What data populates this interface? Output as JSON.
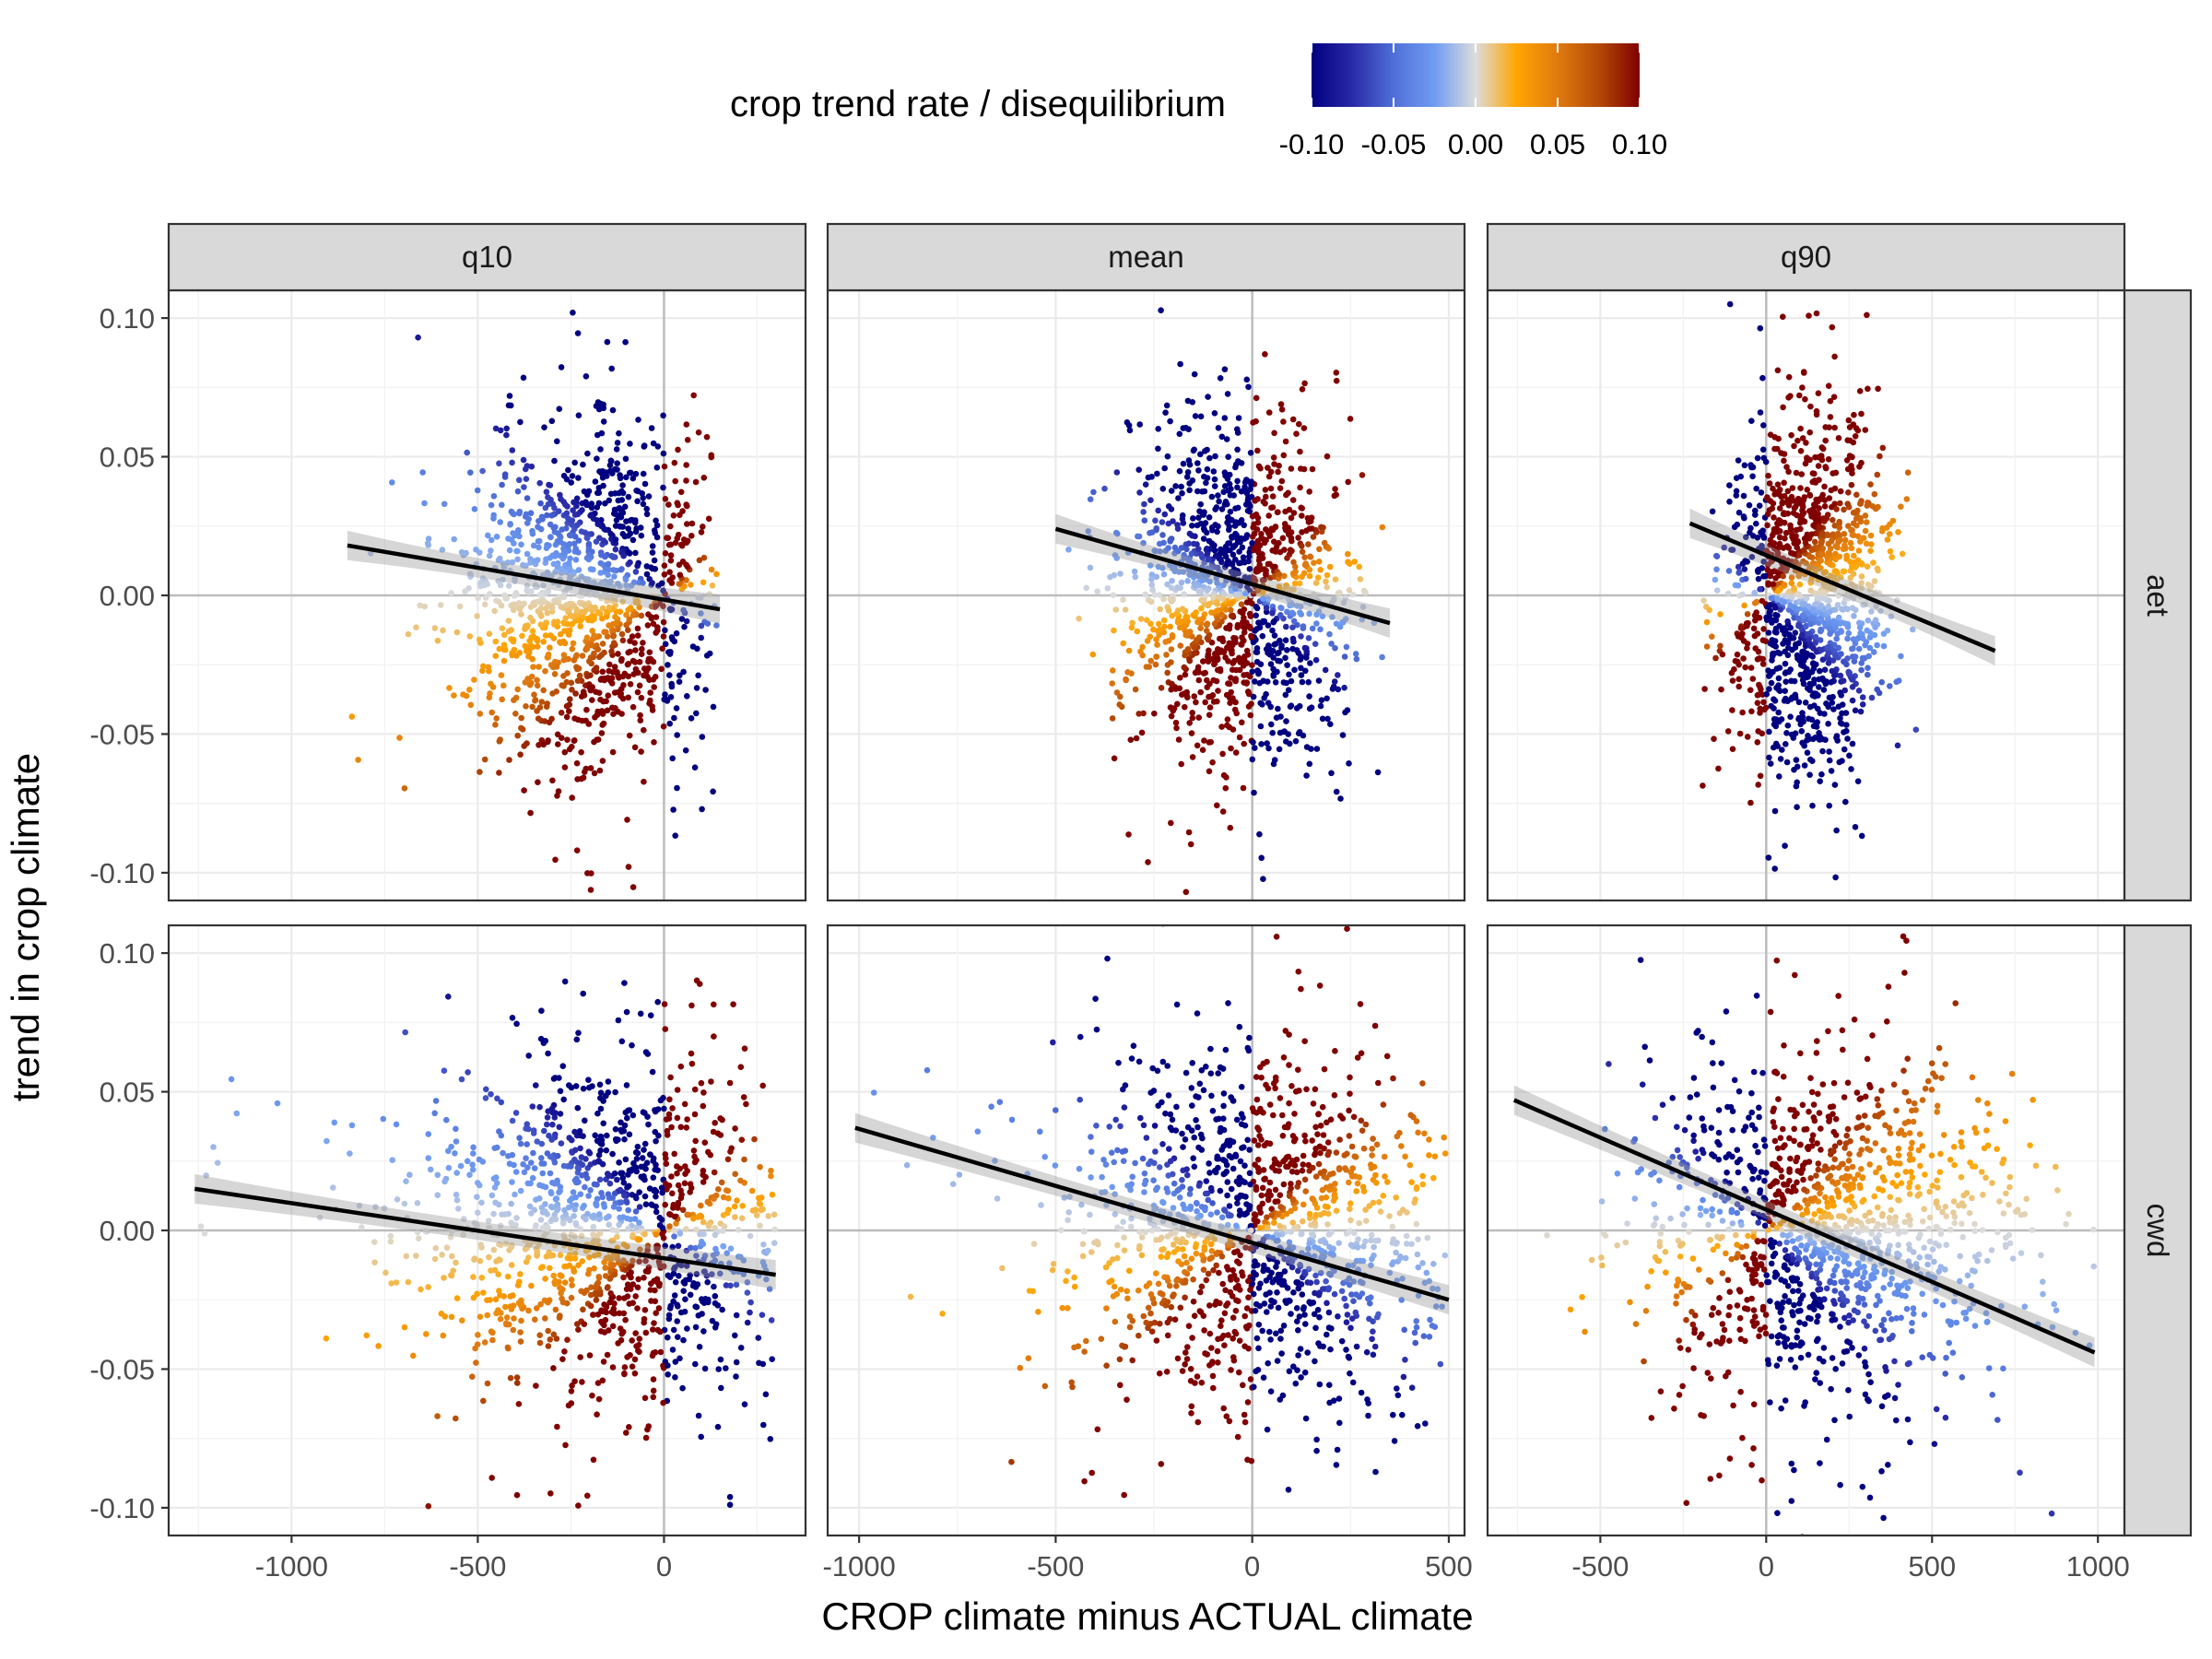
{
  "chart_data": {
    "type": "scatter",
    "xlabel": "CROP climate minus ACTUAL climate",
    "ylabel": "trend in crop climate",
    "legend": {
      "title": "crop trend rate / disequilibrium",
      "position": "top",
      "range": [
        -0.1,
        0.1
      ],
      "ticks": [
        "-0.10",
        "-0.05",
        "0.00",
        "0.05",
        "0.10"
      ],
      "colors": [
        "#000080",
        "#2a2aa8",
        "#4f6fd8",
        "#6f9cf2",
        "#dcdcdc",
        "#ffa500",
        "#e07a10",
        "#b44a05",
        "#800000"
      ]
    },
    "ylim": [
      -0.11,
      0.11
    ],
    "y_ticks": [
      "0.10",
      "0.05",
      "0.00",
      "-0.05",
      "-0.10"
    ],
    "grid": true,
    "facet_columns": [
      "q10",
      "mean",
      "q90"
    ],
    "facet_rows": [
      "aet",
      "cwd"
    ],
    "panels": [
      {
        "col": "q10",
        "row": "aet",
        "xlim": [
          -1330,
          380
        ],
        "x_ticks": [
          -1000,
          -500,
          0
        ],
        "trend_line": {
          "x": [
            -850,
            150
          ],
          "y": [
            0.018,
            -0.005
          ]
        },
        "cloud": {
          "x_range": [
            -880,
            150
          ],
          "x_center": -200,
          "n": 1300
        }
      },
      {
        "col": "mean",
        "row": "aet",
        "xlim": [
          -1080,
          540
        ],
        "x_ticks": [
          -1000,
          -500,
          0,
          500
        ],
        "trend_line": {
          "x": [
            -500,
            350
          ],
          "y": [
            0.024,
            -0.01
          ]
        },
        "cloud": {
          "x_range": [
            -500,
            340
          ],
          "x_center": -40,
          "n": 1300
        }
      },
      {
        "col": "q90",
        "row": "aet",
        "xlim": [
          -840,
          1080
        ],
        "x_ticks": [
          -500,
          0,
          500,
          1000
        ],
        "trend_line": {
          "x": [
            -230,
            690
          ],
          "y": [
            0.026,
            -0.02
          ]
        },
        "cloud": {
          "x_range": [
            -230,
            500
          ],
          "x_center": 130,
          "n": 1300
        }
      },
      {
        "col": "q10",
        "row": "cwd",
        "xlim": [
          -1330,
          380
        ],
        "x_ticks": [
          -1000,
          -500,
          0
        ],
        "trend_line": {
          "x": [
            -1260,
            300
          ],
          "y": [
            0.015,
            -0.016
          ]
        },
        "cloud": {
          "x_range": [
            -1250,
            300
          ],
          "x_center": -150,
          "n": 1300
        }
      },
      {
        "col": "mean",
        "row": "cwd",
        "xlim": [
          -1080,
          540
        ],
        "x_ticks": [
          -1000,
          -500,
          0,
          500
        ],
        "trend_line": {
          "x": [
            -1010,
            500
          ],
          "y": [
            0.037,
            -0.025
          ]
        },
        "cloud": {
          "x_range": [
            -1010,
            500
          ],
          "x_center": 10,
          "n": 1300
        }
      },
      {
        "col": "q90",
        "row": "cwd",
        "xlim": [
          -840,
          1080
        ],
        "x_ticks": [
          -500,
          0,
          500,
          1000
        ],
        "trend_line": {
          "x": [
            -760,
            990
          ],
          "y": [
            0.047,
            -0.044
          ]
        },
        "cloud": {
          "x_range": [
            -760,
            990
          ],
          "x_center": 200,
          "n": 1300
        }
      }
    ]
  }
}
